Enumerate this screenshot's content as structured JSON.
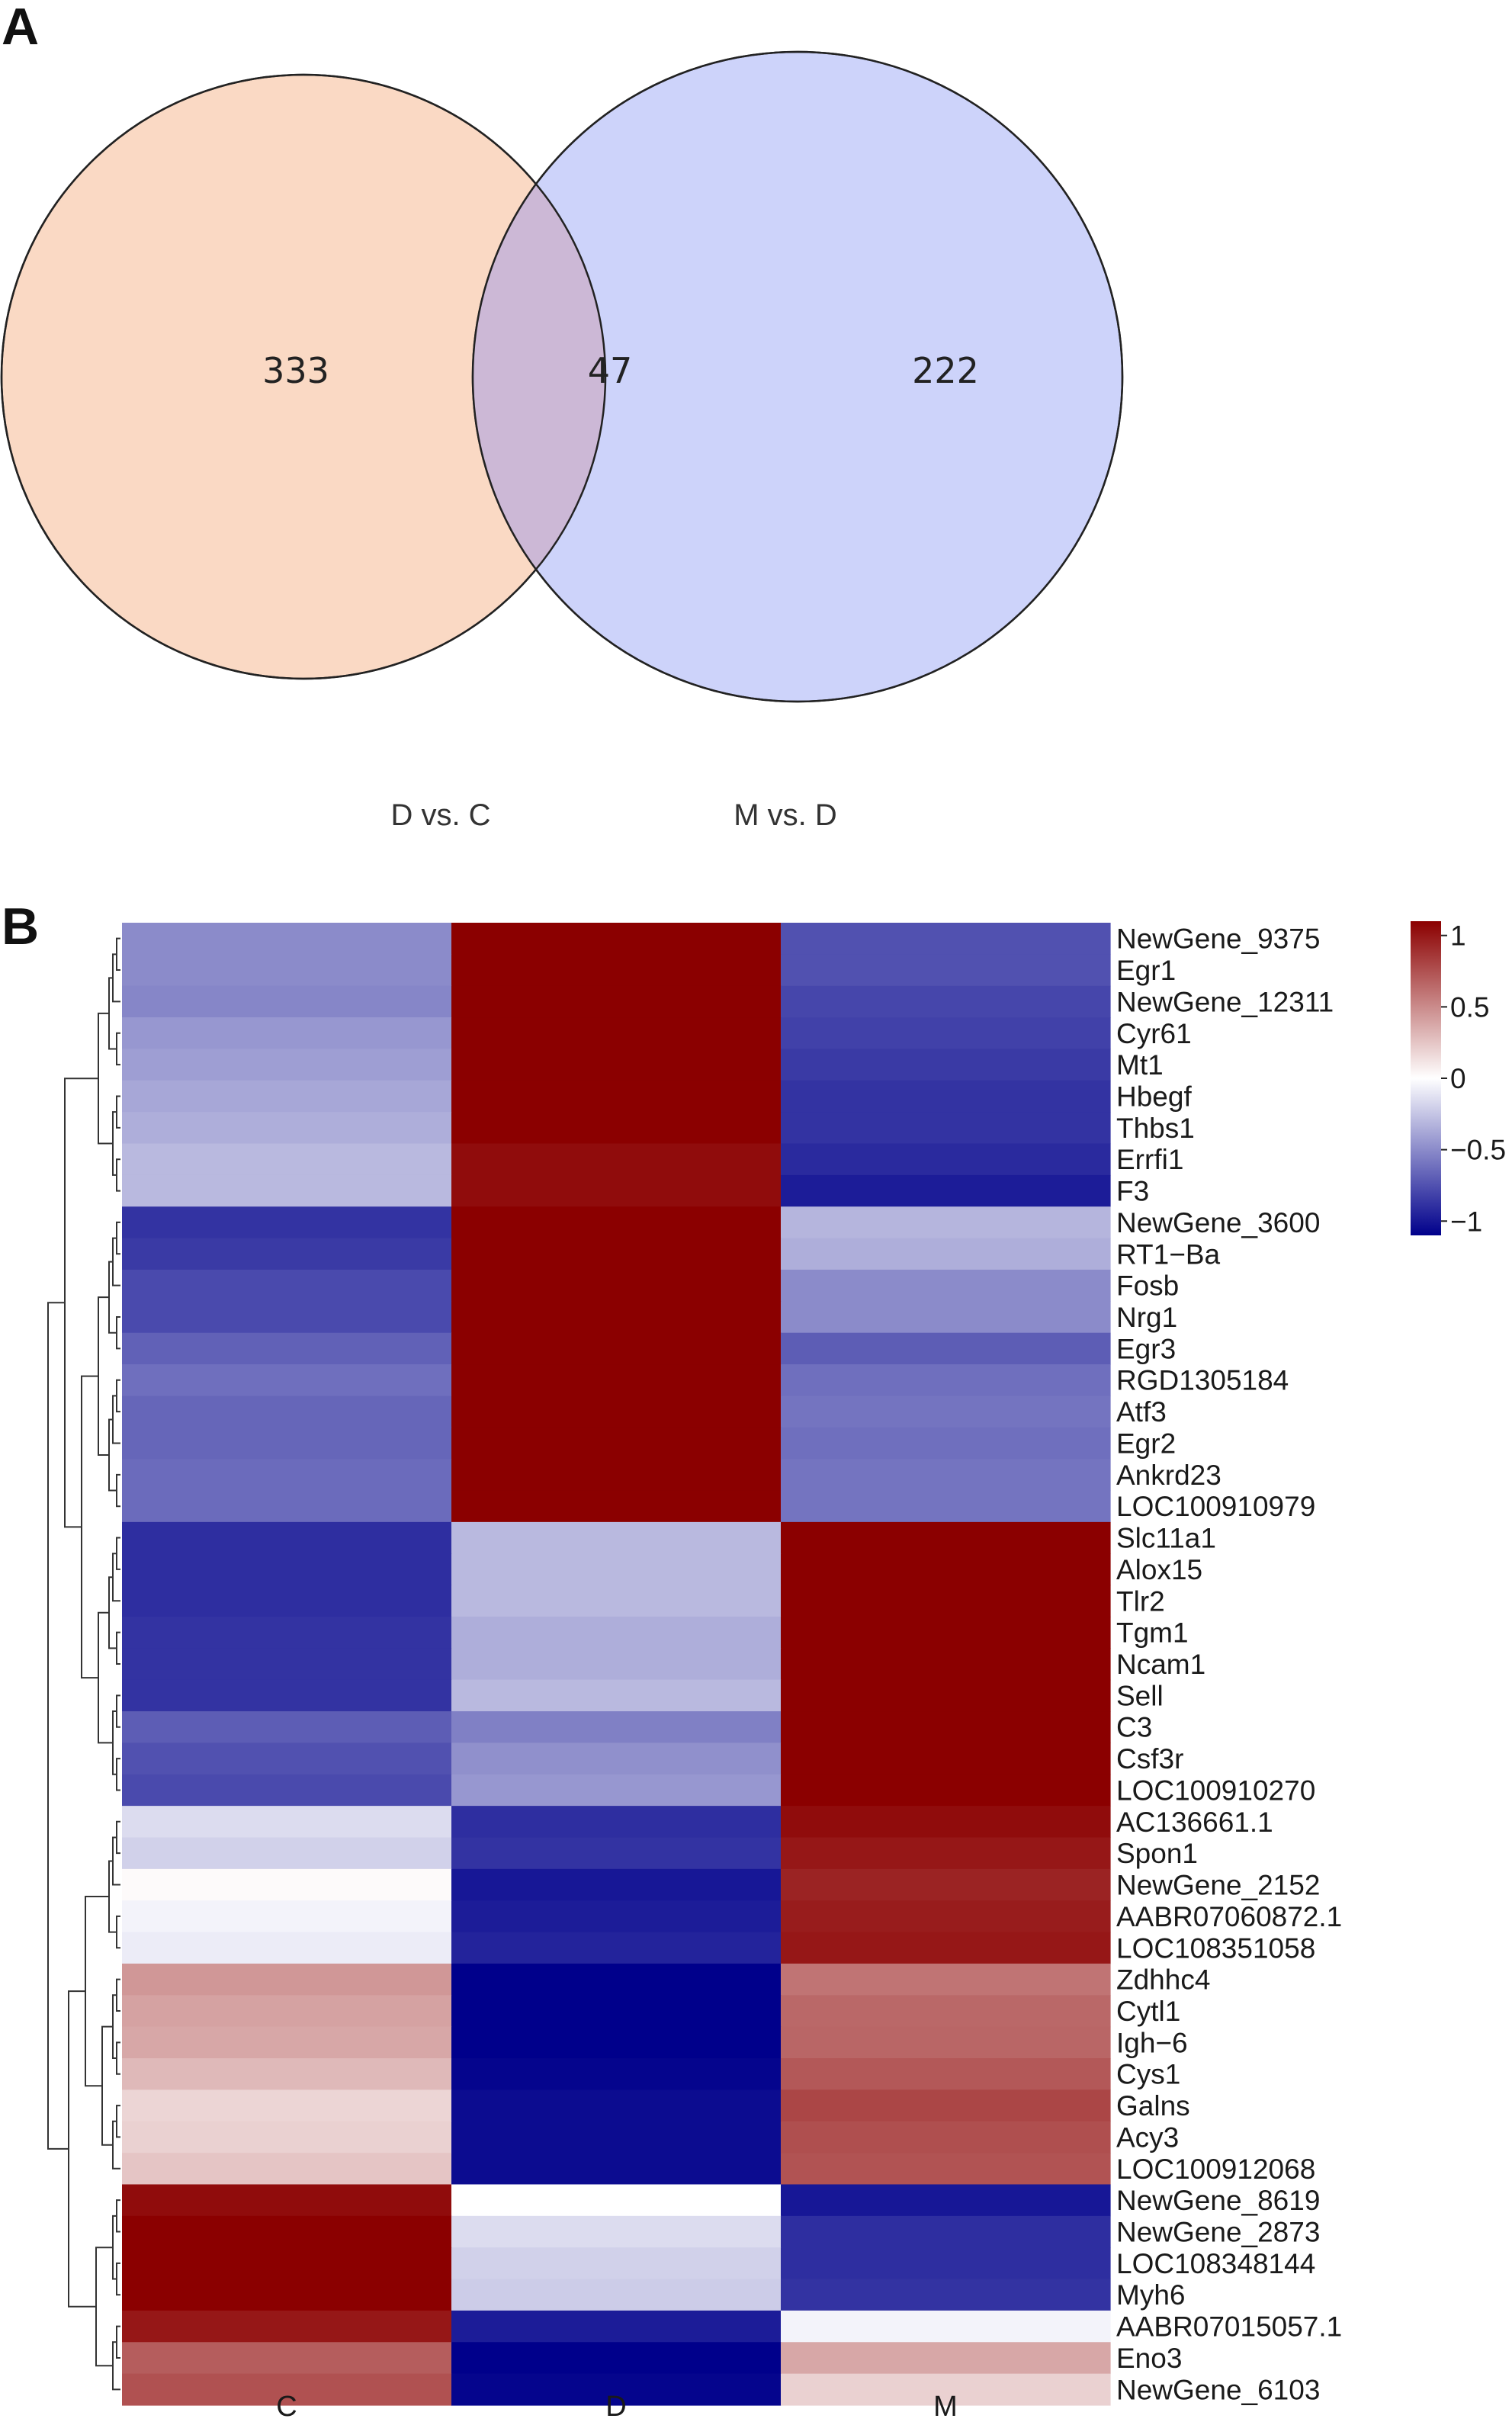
{
  "panels": {
    "a": "A",
    "b": "B"
  },
  "colors": {
    "set1_fill": "#fad9c4",
    "set2_fill": "#cdd3fa",
    "overlap_fill": "#ccb8d6",
    "high": "#8b0000",
    "mid": "#ffffff",
    "low": "#00008b",
    "dendro": "#333333"
  },
  "chart_data": [
    {
      "type": "venn",
      "sets": [
        "D vs. C",
        "M vs. D"
      ],
      "values": {
        "only_first": "333",
        "intersection": "47",
        "only_second": "222"
      }
    },
    {
      "type": "heatmap",
      "columns": [
        "C",
        "D",
        "M"
      ],
      "color_scale": {
        "min": -1.1,
        "max": 1.1,
        "ticks": [
          1,
          0.5,
          0,
          -0.5,
          -1
        ],
        "tick_labels": [
          "1",
          "0.5",
          "0",
          "−0.5",
          "−1"
        ]
      },
      "rows": [
        {
          "gene": "NewGene_9375",
          "values": [
            -0.5,
            1.1,
            -0.75
          ]
        },
        {
          "gene": "Egr1",
          "values": [
            -0.5,
            1.1,
            -0.75
          ]
        },
        {
          "gene": "NewGene_12311",
          "values": [
            -0.52,
            1.1,
            -0.8
          ]
        },
        {
          "gene": "Cyr61",
          "values": [
            -0.45,
            1.1,
            -0.82
          ]
        },
        {
          "gene": "Mt1",
          "values": [
            -0.42,
            1.1,
            -0.85
          ]
        },
        {
          "gene": "Hbegf",
          "values": [
            -0.38,
            1.1,
            -0.88
          ]
        },
        {
          "gene": "Thbs1",
          "values": [
            -0.35,
            1.1,
            -0.88
          ]
        },
        {
          "gene": "Errfi1",
          "values": [
            -0.3,
            1.05,
            -0.92
          ]
        },
        {
          "gene": "F3",
          "values": [
            -0.3,
            1.05,
            -0.98
          ]
        },
        {
          "gene": "NewGene_3600",
          "values": [
            -0.88,
            1.1,
            -0.32
          ]
        },
        {
          "gene": "RT1−Ba",
          "values": [
            -0.85,
            1.1,
            -0.35
          ]
        },
        {
          "gene": "Fosb",
          "values": [
            -0.78,
            1.1,
            -0.5
          ]
        },
        {
          "gene": "Nrg1",
          "values": [
            -0.78,
            1.1,
            -0.5
          ]
        },
        {
          "gene": "Egr3",
          "values": [
            -0.68,
            1.1,
            -0.7
          ]
        },
        {
          "gene": "RGD1305184",
          "values": [
            -0.62,
            1.1,
            -0.62
          ]
        },
        {
          "gene": "Atf3",
          "values": [
            -0.66,
            1.1,
            -0.6
          ]
        },
        {
          "gene": "Egr2",
          "values": [
            -0.66,
            1.1,
            -0.62
          ]
        },
        {
          "gene": "Ankrd23",
          "values": [
            -0.64,
            1.1,
            -0.6
          ]
        },
        {
          "gene": "LOC100910979",
          "values": [
            -0.64,
            1.1,
            -0.6
          ]
        },
        {
          "gene": "Slc11a1",
          "values": [
            -0.9,
            -0.3,
            1.1
          ]
        },
        {
          "gene": "Alox15",
          "values": [
            -0.9,
            -0.3,
            1.1
          ]
        },
        {
          "gene": "Tlr2",
          "values": [
            -0.9,
            -0.3,
            1.1
          ]
        },
        {
          "gene": "Tgm1",
          "values": [
            -0.88,
            -0.35,
            1.1
          ]
        },
        {
          "gene": "Ncam1",
          "values": [
            -0.88,
            -0.35,
            1.1
          ]
        },
        {
          "gene": "Sell",
          "values": [
            -0.88,
            -0.3,
            1.1
          ]
        },
        {
          "gene": "C3",
          "values": [
            -0.7,
            -0.55,
            1.1
          ]
        },
        {
          "gene": "Csf3r",
          "values": [
            -0.75,
            -0.48,
            1.1
          ]
        },
        {
          "gene": "LOC100910270",
          "values": [
            -0.78,
            -0.45,
            1.1
          ]
        },
        {
          "gene": "AC136661.1",
          "values": [
            -0.15,
            -0.9,
            1.05
          ]
        },
        {
          "gene": "Spon1",
          "values": [
            -0.2,
            -0.88,
            1.0
          ]
        },
        {
          "gene": "NewGene_2152",
          "values": [
            0.02,
            -1.0,
            0.95
          ]
        },
        {
          "gene": "AABR07060872.1",
          "values": [
            -0.05,
            -0.98,
            0.98
          ]
        },
        {
          "gene": "LOC108351058",
          "values": [
            -0.08,
            -0.95,
            1.0
          ]
        },
        {
          "gene": "Zdhhc4",
          "values": [
            0.45,
            -1.1,
            0.6
          ]
        },
        {
          "gene": "Cytl1",
          "values": [
            0.4,
            -1.1,
            0.65
          ]
        },
        {
          "gene": "Igh−6",
          "values": [
            0.38,
            -1.1,
            0.66
          ]
        },
        {
          "gene": "Cys1",
          "values": [
            0.3,
            -1.08,
            0.72
          ]
        },
        {
          "gene": "Galns",
          "values": [
            0.18,
            -1.05,
            0.8
          ]
        },
        {
          "gene": "Acy3",
          "values": [
            0.2,
            -1.05,
            0.76
          ]
        },
        {
          "gene": "LOC100912068",
          "values": [
            0.25,
            -1.05,
            0.74
          ]
        },
        {
          "gene": "NewGene_8619",
          "values": [
            1.05,
            0.0,
            -1.0
          ]
        },
        {
          "gene": "NewGene_2873",
          "values": [
            1.1,
            -0.15,
            -0.9
          ]
        },
        {
          "gene": "LOC108348144",
          "values": [
            1.1,
            -0.2,
            -0.9
          ]
        },
        {
          "gene": "Myh6",
          "values": [
            1.1,
            -0.22,
            -0.88
          ]
        },
        {
          "gene": "AABR07015057.1",
          "values": [
            1.0,
            -0.98,
            -0.05
          ]
        },
        {
          "gene": "Eno3",
          "values": [
            0.7,
            -1.1,
            0.38
          ]
        },
        {
          "gene": "NewGene_6103",
          "values": [
            0.75,
            -1.08,
            0.2
          ]
        }
      ]
    }
  ]
}
